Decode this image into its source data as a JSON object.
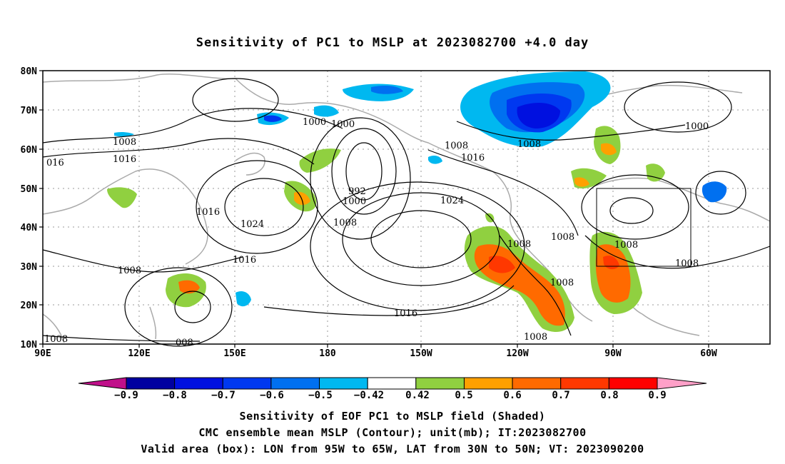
{
  "title": "Sensitivity of PC1 to MSLP at 2023082700 +4.0 day",
  "map": {
    "lat_labels": [
      "80N",
      "70N",
      "60N",
      "50N",
      "40N",
      "30N",
      "20N",
      "10N"
    ],
    "lon_labels": [
      "90E",
      "120E",
      "150E",
      "180",
      "150W",
      "120W",
      "90W",
      "60W"
    ],
    "contour_labels": [
      "1000",
      "1000",
      "1008",
      "1008",
      "1008",
      "016",
      "1016",
      "1016",
      "1016",
      "1016",
      "1016",
      "1024",
      "1024",
      "992",
      "1000",
      "1008",
      "1008",
      "1008",
      "1008",
      "1008",
      "1008",
      "1008",
      "1008",
      "1008",
      "008",
      "1008",
      "1000"
    ],
    "valid_box": {
      "lon_from": "95W",
      "lon_to": "65W",
      "lat_from": "30N",
      "lat_to": "50N"
    }
  },
  "colorbar": {
    "labels": [
      "−0.9",
      "−0.8",
      "−0.7",
      "−0.6",
      "−0.5",
      "−0.42",
      "0.42",
      "0.5",
      "0.6",
      "0.7",
      "0.8",
      "0.9"
    ],
    "colors": [
      "#0000a0",
      "#0010e0",
      "#0038f0",
      "#0070f0",
      "#00b8f0",
      "#ffffff",
      "#90d040",
      "#ffa000",
      "#ff6a00",
      "#ff3800",
      "#ff0000"
    ],
    "left_arrow_color": "#c0108a",
    "right_arrow_color": "#ffa0c8"
  },
  "footer": {
    "line1": "Sensitivity of EOF PC1 to MSLP field (Shaded)",
    "line2": "CMC ensemble mean MSLP (Contour); unit(mb); IT:2023082700",
    "line3": "Valid area (box): LON from 95W to 65W, LAT from 30N to 50N; VT: 2023090200"
  }
}
